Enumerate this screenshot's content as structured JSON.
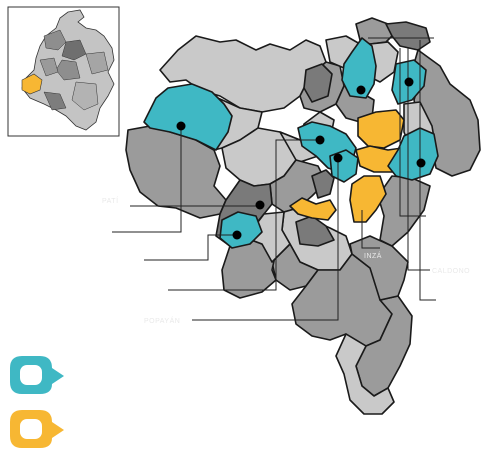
{
  "colors": {
    "teal": "#3fb8c4",
    "orange": "#f7b733",
    "gray_light": "#c9c9c9",
    "gray_mid": "#9b9b9b",
    "gray_dark": "#7a7a7a",
    "background": "#ffffff"
  },
  "faint_labels": {
    "left_1": "PATÍ",
    "left_2": "POPAYÁN",
    "right_1": "INZÁ",
    "right_2": "CALDONO"
  },
  "legend": {
    "teal_marker": "teal-marker-icon",
    "orange_marker": "orange-marker-icon"
  }
}
